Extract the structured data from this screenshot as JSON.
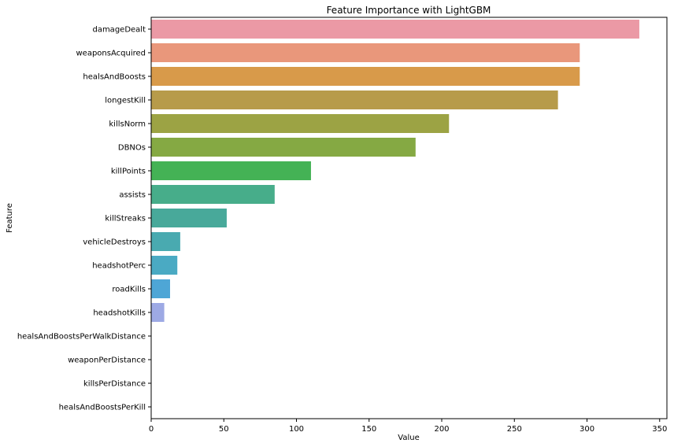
{
  "chart_data": {
    "type": "bar",
    "orientation": "horizontal",
    "title": "Feature Importance with LightGBM",
    "xlabel": "Value",
    "ylabel": "Feature",
    "xlim": [
      0,
      355
    ],
    "xticks": [
      0,
      50,
      100,
      150,
      200,
      250,
      300,
      350
    ],
    "grid": false,
    "categories": [
      "damageDealt",
      "weaponsAcquired",
      "healsAndBoosts",
      "longestKill",
      "killsNorm",
      "DBNOs",
      "killPoints",
      "assists",
      "killStreaks",
      "vehicleDestroys",
      "headshotPerc",
      "roadKills",
      "headshotKills",
      "healsAndBoostsPerWalkDistance",
      "weaponPerDistance",
      "killsPerDistance",
      "healsAndBoostsPerKill"
    ],
    "values": [
      336,
      295,
      295,
      280,
      205,
      182,
      110,
      85,
      52,
      20,
      18,
      13,
      9,
      0,
      0,
      0,
      0
    ],
    "colors": [
      "#eb99a5",
      "#e9977b",
      "#d89a4a",
      "#b79b4a",
      "#9ca344",
      "#85a943",
      "#44b255",
      "#47ad8a",
      "#48a99a",
      "#49aab0",
      "#4aaac3",
      "#4ea6d6",
      "#9da9e4",
      "#c2a4e6",
      "#d9a0e1",
      "#e79dd3",
      "#ec9cc0"
    ]
  }
}
